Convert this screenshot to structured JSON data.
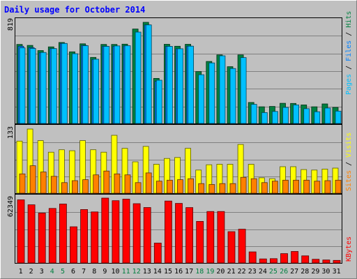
{
  "chart_data": {
    "type": "bar",
    "title": "Daily usage for October 2014",
    "days": [
      "1",
      "2",
      "3",
      "4",
      "5",
      "6",
      "7",
      "8",
      "9",
      "10",
      "11",
      "12",
      "13",
      "14",
      "15",
      "16",
      "17",
      "18",
      "19",
      "20",
      "21",
      "22",
      "23",
      "24",
      "25",
      "26",
      "27",
      "28",
      "29",
      "30",
      "31"
    ],
    "weekend_days": [
      "4",
      "5",
      "11",
      "12",
      "18",
      "19",
      "25",
      "26"
    ],
    "top_panel": {
      "axis_max_label": "819",
      "ymax": 819,
      "right_label_parts": [
        "Pages",
        "Files",
        "Hits"
      ],
      "right_label_separator": " / ",
      "series": [
        {
          "name": "Hits",
          "color": "#008040",
          "values": [
            640,
            632,
            590,
            620,
            656,
            580,
            645,
            535,
            640,
            640,
            642,
            765,
            819,
            365,
            641,
            625,
            641,
            420,
            502,
            555,
            460,
            555,
            170,
            135,
            138,
            163,
            162,
            150,
            135,
            158,
            130
          ]
        },
        {
          "name": "Files",
          "color": "#0080ff",
          "values": [
            625,
            614,
            572,
            606,
            648,
            0,
            632,
            518,
            625,
            625,
            628,
            0,
            798,
            341,
            624,
            605,
            626,
            0,
            0,
            0,
            0,
            0,
            0,
            0,
            0,
            0,
            0,
            0,
            0,
            0,
            0
          ]
        },
        {
          "name": "Pages",
          "color": "#00c0ff",
          "values": [
            612,
            608,
            575,
            606,
            648,
            565,
            630,
            520,
            624,
            628,
            630,
            740,
            798,
            350,
            624,
            605,
            626,
            395,
            490,
            548,
            445,
            533,
            155,
            88,
            97,
            130,
            150,
            120,
            95,
            125,
            100
          ]
        }
      ]
    },
    "middle_panel": {
      "axis_max_label": "133",
      "ymax": 133,
      "right_label_parts": [
        "Sites",
        "Visits"
      ],
      "right_label_separator": " / ",
      "series": [
        {
          "name": "Visits",
          "color": "#ffff00",
          "values": [
            108,
            133,
            109,
            85,
            90,
            88,
            109,
            90,
            85,
            120,
            93,
            65,
            97,
            60,
            72,
            74,
            93,
            48,
            59,
            60,
            60,
            101,
            60,
            32,
            30,
            55,
            55,
            49,
            48,
            50,
            52
          ]
        },
        {
          "name": "Sites",
          "color": "#ff8000",
          "values": [
            40,
            57,
            44,
            35,
            22,
            26,
            28,
            38,
            46,
            40,
            38,
            22,
            42,
            25,
            27,
            28,
            30,
            20,
            18,
            20,
            20,
            33,
            30,
            22,
            25,
            27,
            27,
            27,
            25,
            26,
            27
          ]
        }
      ]
    },
    "bottom_panel": {
      "axis_max_label": "62349",
      "ymax": 62349,
      "right_label": "KBytes",
      "series": [
        {
          "name": "KBytes",
          "color": "#ff0000",
          "values": [
            61300,
            56500,
            48500,
            53000,
            57300,
            35200,
            51900,
            49600,
            63000,
            60500,
            62000,
            57600,
            53900,
            19300,
            60200,
            57900,
            53800,
            40400,
            50000,
            50000,
            30400,
            32800,
            10800,
            3900,
            4200,
            9100,
            11200,
            6900,
            3600,
            2900,
            2500
          ]
        }
      ]
    }
  }
}
